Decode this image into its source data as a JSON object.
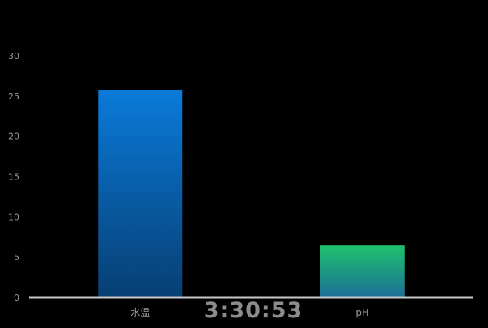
{
  "clock": {
    "time": "3:30:53"
  },
  "colors": {
    "background": "#000000",
    "axis": "#c8c8c8",
    "tick_text": "#9a9a9a",
    "bar_1_top": "#0a7ad9",
    "bar_1_bottom": "#073f73",
    "bar_2_top": "#1fc26d",
    "bar_2_bottom": "#1c6f96"
  },
  "chart_data": {
    "type": "bar",
    "categories": [
      "水温",
      "pH"
    ],
    "values": [
      25.7,
      6.5
    ],
    "ylim": [
      0,
      30
    ],
    "yticks": [
      0,
      5,
      10,
      15,
      20,
      25,
      30
    ],
    "grid": false,
    "legend": "none",
    "title": "",
    "xlabel": "",
    "ylabel": ""
  }
}
